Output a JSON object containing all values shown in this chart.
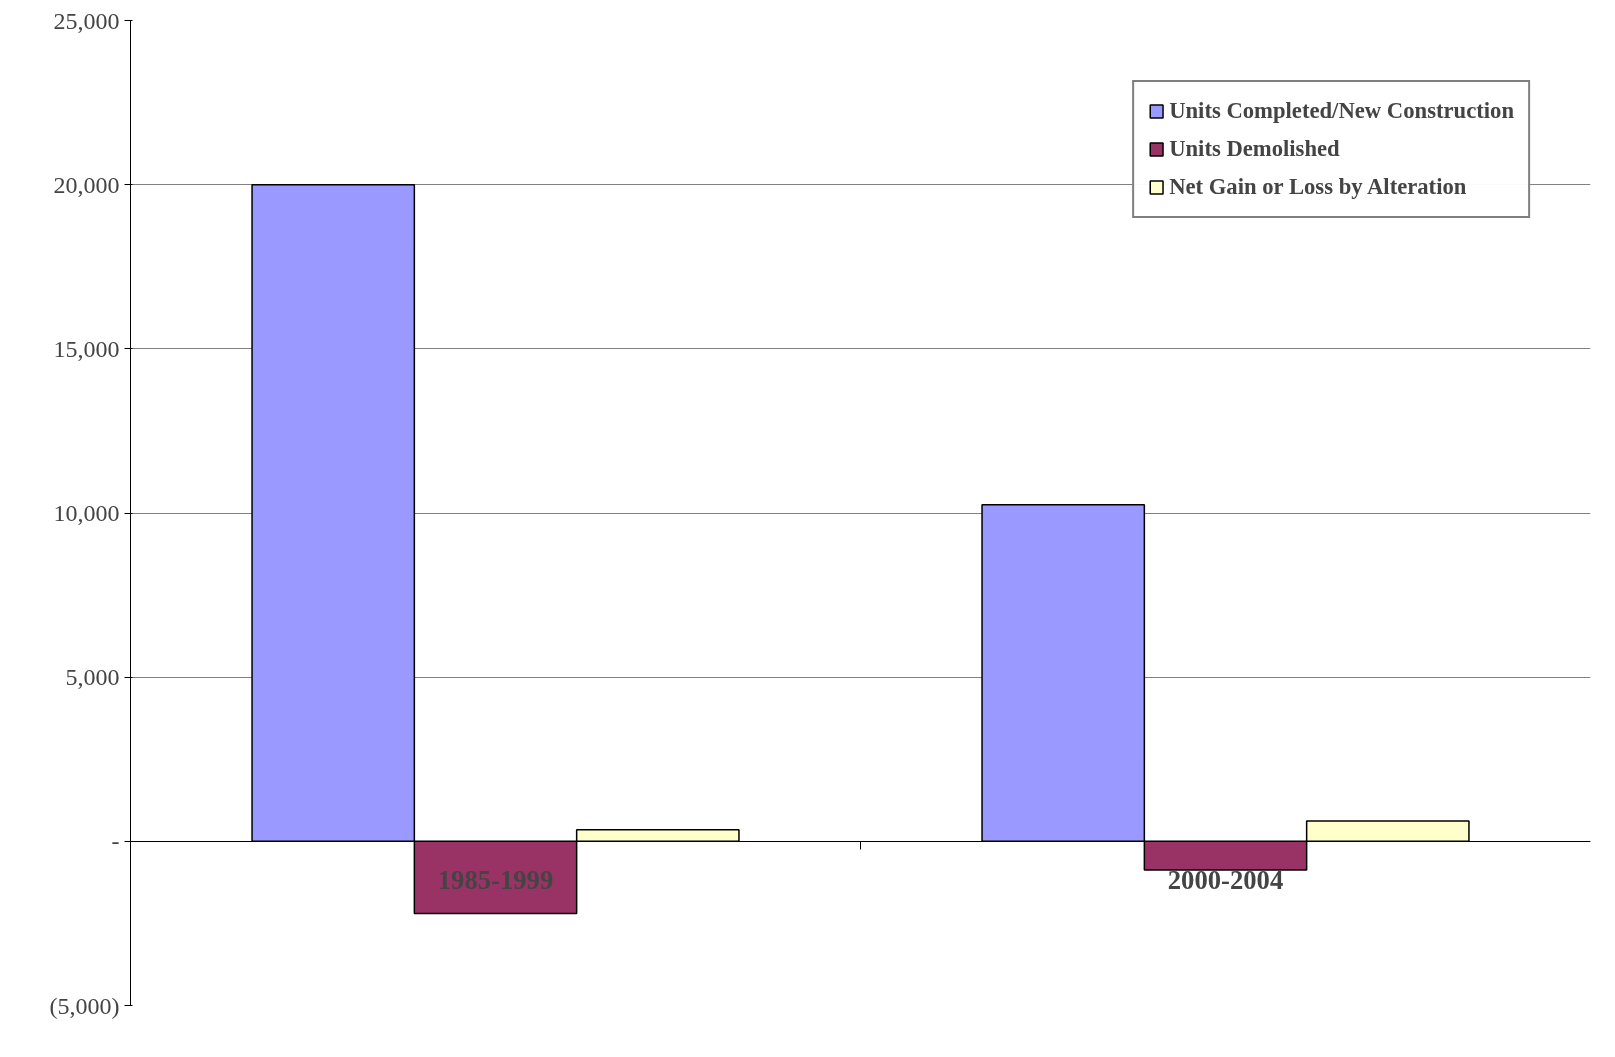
{
  "chart_data": {
    "type": "bar",
    "categories": [
      "1985-1999",
      "2000-2004"
    ],
    "series": [
      {
        "name": "Units Completed/New Construction",
        "color": "#9999ff",
        "values": [
          20000,
          10250
        ]
      },
      {
        "name": "Units Demolished",
        "color": "#993366",
        "values": [
          -2200,
          -870
        ]
      },
      {
        "name": "Net Gain or Loss by Alteration",
        "color": "#ffffcc",
        "values": [
          350,
          620
        ]
      }
    ],
    "ylim": [
      -5000,
      25000
    ],
    "yticks": [
      {
        "value": -5000,
        "label": "(5,000)"
      },
      {
        "value": 0,
        "label": "-"
      },
      {
        "value": 5000,
        "label": "5,000"
      },
      {
        "value": 10000,
        "label": "10,000"
      },
      {
        "value": 15000,
        "label": "15,000"
      },
      {
        "value": 20000,
        "label": "20,000"
      },
      {
        "value": 25000,
        "label": "25,000"
      }
    ],
    "grid": "y",
    "legend": "top right"
  }
}
